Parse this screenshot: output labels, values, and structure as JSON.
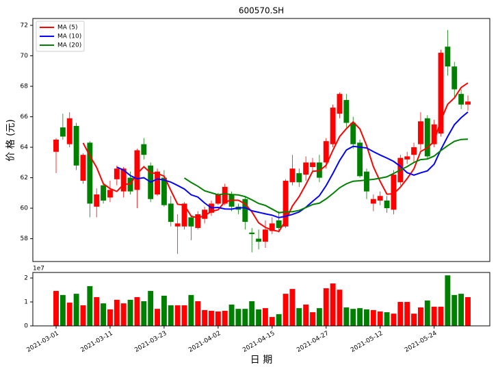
{
  "chart_data": [
    {
      "type": "candlestick",
      "title": "600570.SH",
      "ylabel": "价 格 (元)",
      "open": [
        63.7,
        65.3,
        64.2,
        65.4,
        61.8,
        64.3,
        60.1,
        61.5,
        60.7,
        61.9,
        61.1,
        62.0,
        61.2,
        64.2,
        62.8,
        60.9,
        62.0,
        60.3,
        58.8,
        58.8,
        59.4,
        58.7,
        59.3,
        59.7,
        60.3,
        60.3,
        60.9,
        60.1,
        60.6,
        58.4,
        58.0,
        57.8,
        58.5,
        59.2,
        58.8,
        61.7,
        62.3,
        62.2,
        62.7,
        63.0,
        63.0,
        64.2,
        66.2,
        67.1,
        65.6,
        64.3,
        62.4,
        60.3,
        60.5,
        60.5,
        59.9,
        61.7,
        63.2,
        63.5,
        64.2,
        65.9,
        64.2,
        64.9,
        70.6,
        69.3,
        67.5,
        66.8
      ],
      "high": [
        64.6,
        66.2,
        66.3,
        65.6,
        63.6,
        64.4,
        61.3,
        61.7,
        61.8,
        62.8,
        62.7,
        62.4,
        63.9,
        64.6,
        63.0,
        62.6,
        62.5,
        60.8,
        59.6,
        60.4,
        59.5,
        59.8,
        60.1,
        60.5,
        61.0,
        61.6,
        61.1,
        60.3,
        60.8,
        58.7,
        58.6,
        59.2,
        59.4,
        59.8,
        61.9,
        63.5,
        62.6,
        63.4,
        63.3,
        63.5,
        64.6,
        66.8,
        67.6,
        67.5,
        66.0,
        64.5,
        62.6,
        60.9,
        61.1,
        60.8,
        62.5,
        63.5,
        63.7,
        64.3,
        66.3,
        66.1,
        65.8,
        70.4,
        71.7,
        69.6,
        67.8,
        67.4
      ],
      "low": [
        62.3,
        64.5,
        64.0,
        62.5,
        61.6,
        59.4,
        59.4,
        60.3,
        60.4,
        61.5,
        60.7,
        60.9,
        60.0,
        63.2,
        60.4,
        60.8,
        60.1,
        58.8,
        57.0,
        58.6,
        57.9,
        58.6,
        59.0,
        59.5,
        60.2,
        60.2,
        59.8,
        59.6,
        58.6,
        57.1,
        57.3,
        57.4,
        58.3,
        58.4,
        58.7,
        61.5,
        61.4,
        61.8,
        62.4,
        61.7,
        62.6,
        64.0,
        65.9,
        65.3,
        63.9,
        62.0,
        60.6,
        59.8,
        60.2,
        59.7,
        59.6,
        61.5,
        62.9,
        63.0,
        63.8,
        63.2,
        64.0,
        64.7,
        68.7,
        67.2,
        66.5,
        66.4
      ],
      "close": [
        64.5,
        64.7,
        65.9,
        62.8,
        63.5,
        60.3,
        60.9,
        60.5,
        61.2,
        62.6,
        62.6,
        61.1,
        63.8,
        63.5,
        60.6,
        62.4,
        60.2,
        59.1,
        59.0,
        60.3,
        58.8,
        59.6,
        59.9,
        60.3,
        60.9,
        61.4,
        60.1,
        59.9,
        59.1,
        58.3,
        57.8,
        58.6,
        59.0,
        58.7,
        61.8,
        62.6,
        61.7,
        63.0,
        63.0,
        62.0,
        64.4,
        66.6,
        67.5,
        65.6,
        64.2,
        62.1,
        61.1,
        60.6,
        60.8,
        60.0,
        62.2,
        63.3,
        63.4,
        64.0,
        65.7,
        63.4,
        65.5,
        70.2,
        69.3,
        67.8,
        66.8,
        67.0
      ],
      "up_color": "#ff0000",
      "down_color": "#008000",
      "series": [
        {
          "name": "MA (5)",
          "color": "#ff0000",
          "values": [
            null,
            null,
            null,
            null,
            64.28,
            63.44,
            62.68,
            61.6,
            61.28,
            61.1,
            61.56,
            61.6,
            62.26,
            62.72,
            62.32,
            62.28,
            62.1,
            61.16,
            60.26,
            60.2,
            59.48,
            59.36,
            59.52,
            59.78,
            59.9,
            60.42,
            60.52,
            60.52,
            60.28,
            59.76,
            59.04,
            58.74,
            58.56,
            58.48,
            59.18,
            60.14,
            60.76,
            61.56,
            62.42,
            62.46,
            62.82,
            63.8,
            64.7,
            65.22,
            65.66,
            65.2,
            64.1,
            62.72,
            61.76,
            60.92,
            60.94,
            61.38,
            61.94,
            62.58,
            63.72,
            63.96,
            64.4,
            65.76,
            66.82,
            67.24,
            67.92,
            68.22
          ]
        },
        {
          "name": "MA (10)",
          "color": "#0000ff",
          "values": [
            null,
            null,
            null,
            null,
            null,
            null,
            null,
            null,
            null,
            62.69,
            62.5,
            62.14,
            61.93,
            62.0,
            61.71,
            61.92,
            61.85,
            61.71,
            61.49,
            61.26,
            60.88,
            60.73,
            60.34,
            60.02,
            60.05,
            59.95,
            59.94,
            60.02,
            60.03,
            59.83,
            59.73,
            59.63,
            59.54,
            59.38,
            59.47,
            59.59,
            59.75,
            60.06,
            60.45,
            60.82,
            61.48,
            62.28,
            63.13,
            63.82,
            64.06,
            64.01,
            63.95,
            63.71,
            63.49,
            63.29,
            63.07,
            62.74,
            62.33,
            62.17,
            62.32,
            62.45,
            62.89,
            63.85,
            64.7,
            65.48,
            65.94,
            66.31
          ]
        },
        {
          "name": "MA (20)",
          "color": "#008000",
          "values": [
            null,
            null,
            null,
            null,
            null,
            null,
            null,
            null,
            null,
            null,
            null,
            null,
            null,
            null,
            null,
            null,
            null,
            null,
            null,
            61.98,
            61.69,
            61.44,
            61.14,
            61.01,
            60.88,
            60.94,
            60.9,
            60.87,
            60.76,
            60.55,
            60.31,
            60.18,
            59.94,
            59.7,
            59.76,
            59.77,
            59.85,
            60.04,
            60.24,
            60.33,
            60.61,
            60.96,
            61.34,
            61.6,
            61.77,
            61.8,
            61.85,
            61.89,
            61.97,
            62.06,
            62.28,
            62.51,
            62.73,
            63.0,
            63.19,
            63.23,
            63.42,
            63.78,
            64.1,
            64.39,
            64.51,
            64.53
          ]
        }
      ],
      "ylim": [
        56.5,
        72.45
      ],
      "yticks": [
        58,
        60,
        62,
        64,
        66,
        68,
        70,
        72
      ],
      "legend": "upper left"
    },
    {
      "type": "bar",
      "xlabel": "日 期",
      "offset_label": "1e7",
      "categories": [
        "2021-03-01",
        null,
        null,
        null,
        null,
        null,
        null,
        null,
        "2021-03-11",
        null,
        null,
        null,
        null,
        null,
        null,
        null,
        "2021-03-23",
        null,
        null,
        null,
        null,
        null,
        null,
        null,
        "2021-04-02",
        null,
        null,
        null,
        null,
        null,
        null,
        null,
        "2021-04-15",
        null,
        null,
        null,
        null,
        null,
        null,
        null,
        "2021-04-27",
        null,
        null,
        null,
        null,
        null,
        null,
        null,
        "2021-05-12",
        null,
        null,
        null,
        null,
        null,
        null,
        null,
        "2021-05-24",
        null,
        null,
        null,
        null,
        null
      ],
      "values": [
        1.46,
        1.29,
        0.97,
        1.34,
        0.86,
        1.66,
        1.2,
        0.94,
        0.69,
        1.09,
        0.94,
        1.09,
        1.2,
        1.03,
        1.46,
        0.71,
        1.26,
        0.86,
        0.86,
        0.86,
        1.29,
        1.03,
        0.66,
        0.63,
        0.6,
        0.63,
        0.89,
        0.71,
        0.71,
        1.03,
        0.69,
        0.74,
        0.37,
        0.49,
        1.34,
        1.54,
        0.74,
        0.89,
        0.57,
        0.74,
        1.57,
        1.77,
        1.51,
        0.77,
        0.71,
        0.74,
        0.69,
        0.66,
        0.6,
        0.57,
        0.51,
        1.0,
        1.0,
        0.51,
        0.77,
        1.06,
        0.8,
        0.8,
        2.11,
        1.29,
        1.34,
        1.2
      ],
      "ylim": [
        0,
        2.23
      ],
      "yticks": [
        0,
        1,
        2
      ]
    }
  ]
}
